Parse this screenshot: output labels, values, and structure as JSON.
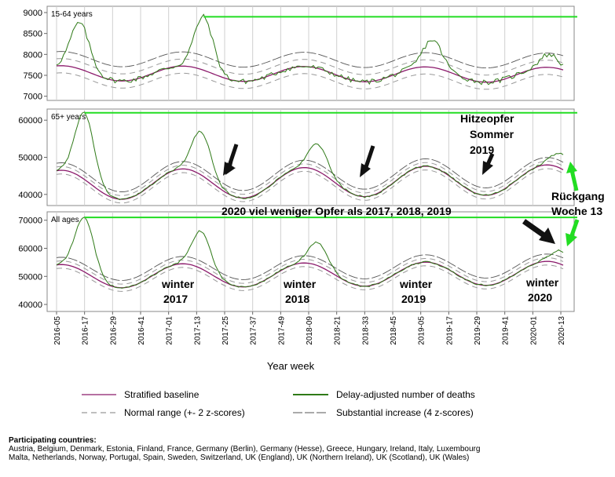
{
  "chart_data": [
    {
      "type": "line",
      "panel_label": "15-64 years",
      "ylim": [
        6900,
        9150
      ],
      "yticks": [
        7000,
        7500,
        8000,
        8500,
        9000
      ],
      "baseline": {
        "mean": 7550,
        "amp": 180,
        "phase_week": 2,
        "trend": -40
      },
      "normal_range": 170,
      "substantial": 340,
      "peaks": [
        {
          "week": 10,
          "value": 8750
        },
        {
          "week": 63,
          "value": 8900
        },
        {
          "week": 161,
          "value": 8350
        },
        {
          "week": 211,
          "value": 8000
        }
      ],
      "noise": 120
    },
    {
      "type": "line",
      "panel_label": "65+ years",
      "ylim": [
        37000,
        63000
      ],
      "yticks": [
        40000,
        50000,
        60000
      ],
      "baseline": {
        "mean": 42500,
        "amp": 4000,
        "phase_week": 2,
        "trend": 1500
      },
      "normal_range": 1000,
      "substantial": 2000,
      "peaks": [
        {
          "week": 12,
          "value": 62000
        },
        {
          "week": 62,
          "value": 57000
        },
        {
          "week": 112,
          "value": 53500
        },
        {
          "week": 216,
          "value": 51000
        }
      ],
      "noise": 500
    },
    {
      "type": "line",
      "panel_label": "All ages",
      "ylim": [
        37500,
        73000
      ],
      "yticks": [
        40000,
        50000,
        60000,
        70000
      ],
      "baseline": {
        "mean": 50000,
        "amp": 4200,
        "phase_week": 2,
        "trend": 1200
      },
      "normal_range": 1300,
      "substantial": 2600,
      "peaks": [
        {
          "week": 12,
          "value": 71000
        },
        {
          "week": 62,
          "value": 66000
        },
        {
          "week": 112,
          "value": 62000
        },
        {
          "week": 216,
          "value": 59000
        }
      ],
      "noise": 600
    }
  ],
  "x_axis": {
    "label": "Year week",
    "first_week": "2016-05",
    "n_weeks": 218,
    "ticks": [
      {
        "label": "2016-05",
        "week": 0
      },
      {
        "label": "2016-17",
        "week": 12
      },
      {
        "label": "2016-29",
        "week": 24
      },
      {
        "label": "2016-41",
        "week": 36
      },
      {
        "label": "2017-01",
        "week": 48
      },
      {
        "label": "2017-13",
        "week": 60
      },
      {
        "label": "2017-25",
        "week": 72
      },
      {
        "label": "2017-37",
        "week": 84
      },
      {
        "label": "2017-49",
        "week": 96
      },
      {
        "label": "2018-09",
        "week": 108
      },
      {
        "label": "2018-21",
        "week": 120
      },
      {
        "label": "2018-33",
        "week": 132
      },
      {
        "label": "2018-45",
        "week": 144
      },
      {
        "label": "2019-05",
        "week": 156
      },
      {
        "label": "2019-17",
        "week": 168
      },
      {
        "label": "2019-29",
        "week": 180
      },
      {
        "label": "2019-41",
        "week": 192
      },
      {
        "label": "2020-01",
        "week": 204
      },
      {
        "label": "2020-13",
        "week": 216
      }
    ]
  },
  "annotations": {
    "hitze_line1": "Hitzeopfer",
    "hitze_line2": "Sommer",
    "hitze_line3": "2019",
    "rueck_line1": "Rückgang",
    "rueck_line2": "Woche 13",
    "comparison": "2020 viel weniger Opfer als 2017, 2018, 2019",
    "winter_word": "winter",
    "winter_years": [
      "2017",
      "2018",
      "2019",
      "2020"
    ]
  },
  "legend": {
    "baseline": "Stratified baseline",
    "deaths": "Delay-adjusted number of deaths",
    "normal": "Normal range (+- 2 z-scores)",
    "substantial": "Substantial increase (4 z-scores)"
  },
  "footer": {
    "title": "Participating countries:",
    "line1": "Austria, Belgium, Denmark, Estonia, Finland, France, Germany (Berlin), Germany (Hesse), Greece, Hungary, Ireland, Italy, Luxembourg",
    "line2": "Malta, Netherlands, Norway, Portugal, Spain, Sweden, Switzerland, UK (England), UK (Northern Ireland), UK (Scotland), UK (Wales)"
  },
  "colors": {
    "baseline": "#8b1a6b",
    "deaths": "#2f7a18",
    "range": "#999999",
    "substantial": "#555555",
    "bright_green": "#22dd22",
    "grid": "#cfcfcf"
  }
}
